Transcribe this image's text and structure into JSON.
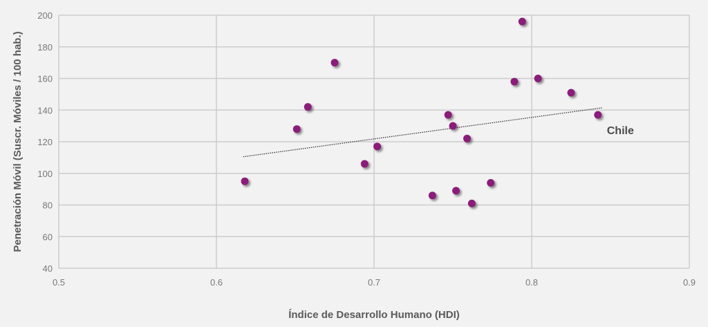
{
  "chart_data": {
    "type": "scatter",
    "title": "",
    "xlabel": "Índice de Desarrollo Humano (HDI)",
    "ylabel": "Penetración Móvil (Suscr. Móviles / 100 hab.)",
    "xlim": [
      0.5,
      0.9
    ],
    "ylim": [
      40,
      200
    ],
    "x_ticks": [
      "0.5",
      "0.6",
      "0.7",
      "0.8",
      "0.9"
    ],
    "y_ticks": [
      "40",
      "60",
      "80",
      "100",
      "120",
      "140",
      "160",
      "180",
      "200"
    ],
    "grid": true,
    "colors": {
      "point": "#8a1f7a",
      "grid": "#cccccc",
      "trend": "#333333",
      "background": "#f2f2f2"
    },
    "points": [
      {
        "x": 0.618,
        "y": 95
      },
      {
        "x": 0.651,
        "y": 128
      },
      {
        "x": 0.658,
        "y": 142
      },
      {
        "x": 0.675,
        "y": 170
      },
      {
        "x": 0.694,
        "y": 106
      },
      {
        "x": 0.702,
        "y": 117
      },
      {
        "x": 0.737,
        "y": 86
      },
      {
        "x": 0.747,
        "y": 137
      },
      {
        "x": 0.75,
        "y": 130
      },
      {
        "x": 0.752,
        "y": 89
      },
      {
        "x": 0.759,
        "y": 122
      },
      {
        "x": 0.762,
        "y": 81
      },
      {
        "x": 0.774,
        "y": 94
      },
      {
        "x": 0.789,
        "y": 158
      },
      {
        "x": 0.794,
        "y": 196
      },
      {
        "x": 0.804,
        "y": 160
      },
      {
        "x": 0.825,
        "y": 151
      },
      {
        "x": 0.842,
        "y": 137
      }
    ],
    "trendline": {
      "x": [
        0.617,
        0.845
      ],
      "y": [
        110.5,
        141.5
      ]
    },
    "annotations": [
      {
        "text": "Chile",
        "x": 0.842,
        "y": 137
      }
    ]
  }
}
